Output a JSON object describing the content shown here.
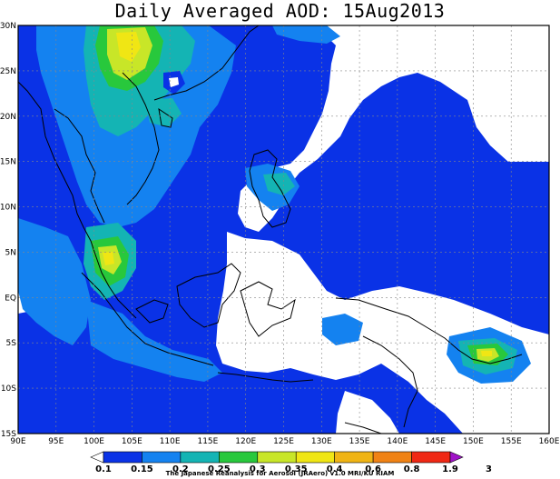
{
  "title": "Daily Averaged AOD: 15Aug2013",
  "credit": "The Japanese Reanalysis for Aerosol (JRAero) v1.0 MRI/KU RIAM",
  "map": {
    "lon_labels": [
      "90E",
      "95E",
      "100E",
      "105E",
      "110E",
      "115E",
      "120E",
      "125E",
      "130E",
      "135E",
      "140E",
      "145E",
      "150E",
      "155E",
      "160E"
    ],
    "lat_labels": [
      "30N",
      "25N",
      "20N",
      "15N",
      "10N",
      "5N",
      "EQ",
      "5S",
      "10S",
      "15S"
    ]
  },
  "colorbar": {
    "levels": [
      "0.1",
      "0.15",
      "0.2",
      "0.25",
      "0.3",
      "0.35",
      "0.4",
      "0.6",
      "0.8",
      "1.9",
      "3"
    ],
    "colors": [
      "#ffffff",
      "#0a32e6",
      "#1482f0",
      "#14b4b4",
      "#28c83c",
      "#c8e628",
      "#f0e614",
      "#f0b414",
      "#f08214",
      "#f02814",
      "#a014c8"
    ]
  }
}
